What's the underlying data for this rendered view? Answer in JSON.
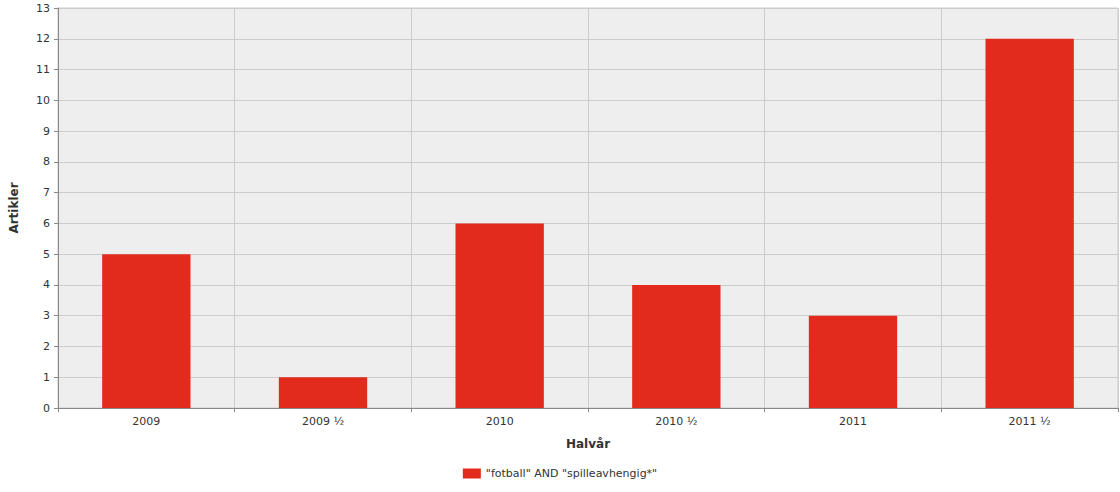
{
  "chart_data": {
    "type": "bar",
    "x_label": "Halvår",
    "y_label": "Artikler",
    "categories": [
      "2009",
      "2009 ½",
      "2010",
      "2010 ½",
      "2011",
      "2011 ½"
    ],
    "series": [
      {
        "name": "\"fotball\" AND \"spilleavhengig*\"",
        "color": "#e32b1d",
        "values": [
          5,
          1,
          6,
          4,
          3,
          12
        ]
      }
    ],
    "ylim": [
      0,
      13
    ],
    "yticks": [
      0,
      1,
      2,
      3,
      4,
      5,
      6,
      7,
      8,
      9,
      10,
      11,
      12,
      13
    ],
    "grid": true,
    "legend": "bottom"
  }
}
